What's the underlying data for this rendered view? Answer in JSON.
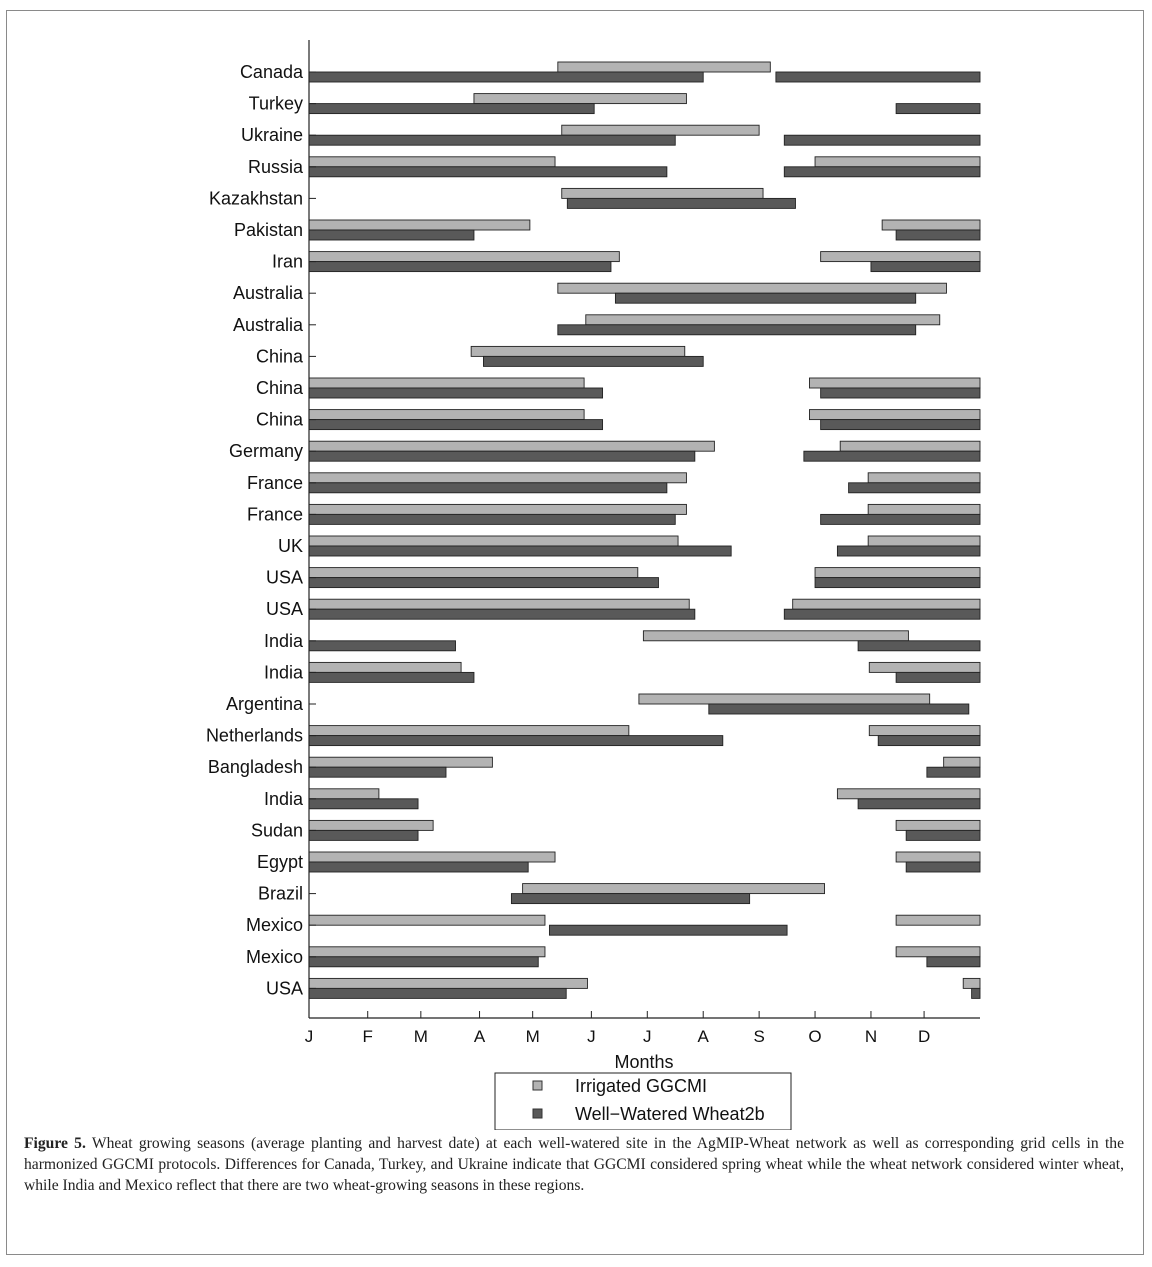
{
  "chart_data": {
    "type": "bar",
    "subtype": "horizontal-range (planting to harvest)",
    "xlabel": "Months",
    "x_ticks": [
      "J",
      "F",
      "M",
      "A",
      "M",
      "J",
      "J",
      "A",
      "S",
      "O",
      "N",
      "D"
    ],
    "xlim": [
      0,
      12
    ],
    "grid": false,
    "legend_position": "bottom-center",
    "series": [
      {
        "name": "Irrigated GGCMI",
        "color": "#b3b3b3"
      },
      {
        "name": "Well−Watered Wheat2b",
        "color": "#595959"
      }
    ],
    "rows": [
      {
        "label": "Canada",
        "irrigated": [
          [
            4.45,
            8.25
          ]
        ],
        "wheat2b": [
          [
            0,
            7.05
          ],
          [
            8.35,
            12
          ]
        ]
      },
      {
        "label": "Turkey",
        "irrigated": [
          [
            2.95,
            6.75
          ]
        ],
        "wheat2b": [
          [
            0,
            5.1
          ],
          [
            10.5,
            12
          ]
        ]
      },
      {
        "label": "Ukraine",
        "irrigated": [
          [
            4.52,
            8.05
          ]
        ],
        "wheat2b": [
          [
            0,
            6.55
          ],
          [
            8.5,
            12
          ]
        ]
      },
      {
        "label": "Russia",
        "irrigated": [
          [
            0,
            4.4
          ],
          [
            9.05,
            12
          ]
        ],
        "wheat2b": [
          [
            0,
            6.4
          ],
          [
            8.5,
            12
          ]
        ]
      },
      {
        "label": "Kazakhstan",
        "irrigated": [
          [
            4.52,
            8.12
          ]
        ],
        "wheat2b": [
          [
            4.62,
            8.7
          ]
        ]
      },
      {
        "label": "Pakistan",
        "irrigated": [
          [
            0,
            3.95
          ],
          [
            10.25,
            12
          ]
        ],
        "wheat2b": [
          [
            0,
            2.95
          ],
          [
            10.5,
            12
          ]
        ]
      },
      {
        "label": "Iran",
        "irrigated": [
          [
            0,
            5.55
          ],
          [
            9.15,
            12
          ]
        ],
        "wheat2b": [
          [
            0,
            5.4
          ],
          [
            10.05,
            12
          ]
        ]
      },
      {
        "label": "Australia",
        "irrigated": [
          [
            4.45,
            11.4
          ]
        ],
        "wheat2b": [
          [
            5.48,
            10.85
          ]
        ]
      },
      {
        "label": "Australia",
        "irrigated": [
          [
            4.95,
            11.28
          ]
        ],
        "wheat2b": [
          [
            4.45,
            10.85
          ]
        ]
      },
      {
        "label": "China",
        "irrigated": [
          [
            2.9,
            6.72
          ]
        ],
        "wheat2b": [
          [
            3.12,
            7.05
          ]
        ]
      },
      {
        "label": "China",
        "irrigated": [
          [
            0,
            4.92
          ],
          [
            8.95,
            12
          ]
        ],
        "wheat2b": [
          [
            0,
            5.25
          ],
          [
            9.15,
            12
          ]
        ]
      },
      {
        "label": "China",
        "irrigated": [
          [
            0,
            4.92
          ],
          [
            8.95,
            12
          ]
        ],
        "wheat2b": [
          [
            0,
            5.25
          ],
          [
            9.15,
            12
          ]
        ]
      },
      {
        "label": "Germany",
        "irrigated": [
          [
            0,
            7.25
          ],
          [
            9.5,
            12
          ]
        ],
        "wheat2b": [
          [
            0,
            6.9
          ],
          [
            8.85,
            12
          ]
        ]
      },
      {
        "label": "France",
        "irrigated": [
          [
            0,
            6.75
          ],
          [
            10.0,
            12
          ]
        ],
        "wheat2b": [
          [
            0,
            6.4
          ],
          [
            9.65,
            12
          ]
        ]
      },
      {
        "label": "France",
        "irrigated": [
          [
            0,
            6.75
          ],
          [
            10.0,
            12
          ]
        ],
        "wheat2b": [
          [
            0,
            6.55
          ],
          [
            9.15,
            12
          ]
        ]
      },
      {
        "label": "UK",
        "irrigated": [
          [
            0,
            6.6
          ],
          [
            10.0,
            12
          ]
        ],
        "wheat2b": [
          [
            0,
            7.55
          ],
          [
            9.45,
            12
          ]
        ]
      },
      {
        "label": "USA",
        "irrigated": [
          [
            0,
            5.88
          ],
          [
            9.05,
            12
          ]
        ],
        "wheat2b": [
          [
            0,
            6.25
          ],
          [
            9.05,
            12
          ]
        ]
      },
      {
        "label": "USA",
        "irrigated": [
          [
            0,
            6.8
          ],
          [
            8.65,
            12
          ]
        ],
        "wheat2b": [
          [
            0,
            6.9
          ],
          [
            8.5,
            12
          ]
        ]
      },
      {
        "label": "India",
        "irrigated": [
          [
            5.98,
            10.72
          ]
        ],
        "wheat2b": [
          [
            0,
            2.62
          ],
          [
            9.82,
            12
          ]
        ]
      },
      {
        "label": "India",
        "irrigated": [
          [
            0,
            2.72
          ],
          [
            10.02,
            12
          ]
        ],
        "wheat2b": [
          [
            0,
            2.95
          ],
          [
            10.5,
            12
          ]
        ]
      },
      {
        "label": "Argentina",
        "irrigated": [
          [
            5.9,
            11.1
          ]
        ],
        "wheat2b": [
          [
            7.15,
            11.8
          ]
        ]
      },
      {
        "label": "Netherlands",
        "irrigated": [
          [
            0,
            5.72
          ],
          [
            10.02,
            12
          ]
        ],
        "wheat2b": [
          [
            0,
            7.4
          ],
          [
            10.18,
            12
          ]
        ]
      },
      {
        "label": "Bangladesh",
        "irrigated": [
          [
            0,
            3.28
          ],
          [
            11.35,
            12
          ]
        ],
        "wheat2b": [
          [
            0,
            2.45
          ],
          [
            11.05,
            12
          ]
        ]
      },
      {
        "label": "India",
        "irrigated": [
          [
            0,
            1.25
          ],
          [
            9.45,
            12
          ]
        ],
        "wheat2b": [
          [
            0,
            1.95
          ],
          [
            9.82,
            12
          ]
        ]
      },
      {
        "label": "Sudan",
        "irrigated": [
          [
            0,
            2.22
          ],
          [
            10.5,
            12
          ]
        ],
        "wheat2b": [
          [
            0,
            1.95
          ],
          [
            10.68,
            12
          ]
        ]
      },
      {
        "label": "Egypt",
        "irrigated": [
          [
            0,
            4.4
          ],
          [
            10.5,
            12
          ]
        ],
        "wheat2b": [
          [
            0,
            3.92
          ],
          [
            10.68,
            12
          ]
        ]
      },
      {
        "label": "Brazil",
        "irrigated": [
          [
            3.82,
            9.22
          ]
        ],
        "wheat2b": [
          [
            3.62,
            7.88
          ]
        ]
      },
      {
        "label": "Mexico",
        "irrigated": [
          [
            0,
            4.22
          ],
          [
            10.5,
            12
          ]
        ],
        "wheat2b": [
          [
            4.3,
            8.55
          ]
        ]
      },
      {
        "label": "Mexico",
        "irrigated": [
          [
            0,
            4.22
          ],
          [
            10.5,
            12
          ]
        ],
        "wheat2b": [
          [
            0,
            4.1
          ],
          [
            11.05,
            12
          ]
        ]
      },
      {
        "label": "USA",
        "irrigated": [
          [
            0,
            4.98
          ],
          [
            11.7,
            12
          ]
        ],
        "wheat2b": [
          [
            0,
            4.6
          ],
          [
            11.85,
            12
          ]
        ]
      }
    ]
  },
  "caption": {
    "label": "Figure 5.",
    "text": " Wheat growing seasons (average planting and harvest date) at each well-watered site in the AgMIP-Wheat network as well as corresponding grid cells in the harmonized GGCMI protocols. Differences for Canada, Turkey, and Ukraine indicate that GGCMI considered spring wheat while the wheat network considered winter wheat, while India and Mexico reflect that there are two wheat-growing seasons in these regions."
  }
}
